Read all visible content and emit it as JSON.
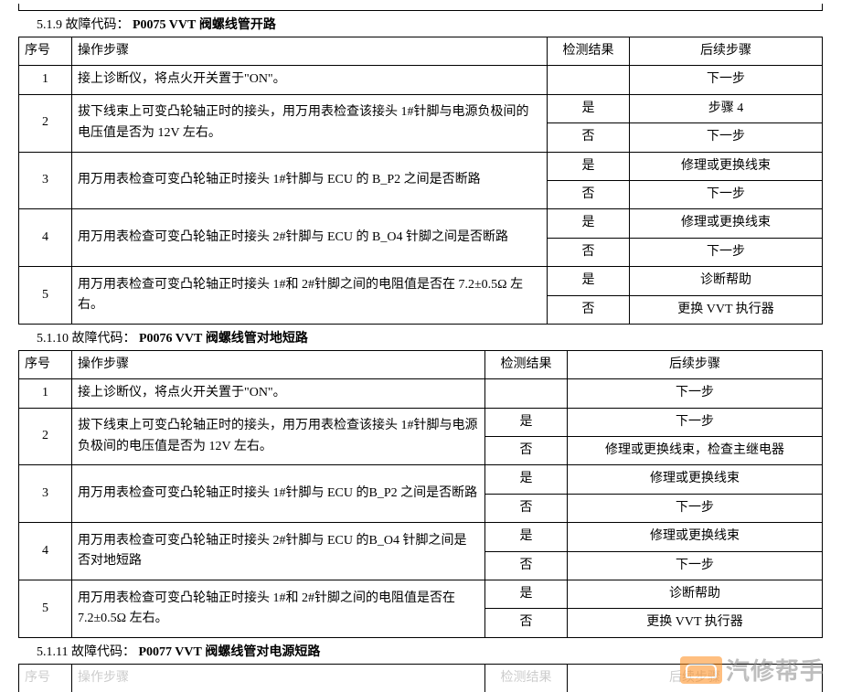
{
  "section_519": {
    "number": "5.1.9",
    "label": "故障代码：",
    "code": "P0075 VVT",
    "desc": "阀螺线管开路"
  },
  "section_5110": {
    "number": "5.1.10",
    "label": "故障代码：",
    "code": "P0076 VVT",
    "desc": "阀螺线管对地短路"
  },
  "section_5111": {
    "number": "5.1.11",
    "label": "故障代码：",
    "code": "P0077 VVT",
    "desc": "阀螺线管对电源短路"
  },
  "headers": {
    "seq": "序号",
    "op": "操作步骤",
    "res": "检测结果",
    "next": "后续步骤"
  },
  "tableA": {
    "r1_op": "接上诊断仪，将点火开关置于\"ON\"。",
    "r1_next": "下一步",
    "r2_op": "拔下线束上可变凸轮轴正时的接头，用万用表检查该接头 1#针脚与电源负极间的电压值是否为 12V 左右。",
    "r2_yes": "是",
    "r2_yes_next": "步骤 4",
    "r2_no": "否",
    "r2_no_next": "下一步",
    "r3_op": "用万用表检查可变凸轮轴正时接头 1#针脚与 ECU 的 B_P2 之间是否断路",
    "r3_yes": "是",
    "r3_yes_next": "修理或更换线束",
    "r3_no": "否",
    "r3_no_next": "下一步",
    "r4_op": "用万用表检查可变凸轮轴正时接头 2#针脚与 ECU 的 B_O4 针脚之间是否断路",
    "r4_yes": "是",
    "r4_yes_next": "修理或更换线束",
    "r4_no": "否",
    "r4_no_next": "下一步",
    "r5_op": "用万用表检查可变凸轮轴正时接头 1#和 2#针脚之间的电阻值是否在 7.2±0.5Ω 左右。",
    "r5_yes": "是",
    "r5_yes_next": "诊断帮助",
    "r5_no": "否",
    "r5_no_next": "更换 VVT 执行器",
    "n1": "1",
    "n2": "2",
    "n3": "3",
    "n4": "4",
    "n5": "5"
  },
  "tableB": {
    "r1_op": "接上诊断仪，将点火开关置于\"ON\"。",
    "r1_next": "下一步",
    "r2_op": "拔下线束上可变凸轮轴正时的接头，用万用表检查该接头 1#针脚与电源负极间的电压值是否为 12V 左右。",
    "r2_yes": "是",
    "r2_yes_next": "下一步",
    "r2_no": "否",
    "r2_no_next": "修理或更换线束，检查主继电器",
    "r3_op": "用万用表检查可变凸轮轴正时接头 1#针脚与 ECU 的B_P2 之间是否断路",
    "r3_yes": "是",
    "r3_yes_next": "修理或更换线束",
    "r3_no": "否",
    "r3_no_next": "下一步",
    "r4_op": "用万用表检查可变凸轮轴正时接头 2#针脚与 ECU 的B_O4 针脚之间是否对地短路",
    "r4_yes": "是",
    "r4_yes_next": "修理或更换线束",
    "r4_no": "否",
    "r4_no_next": "下一步",
    "r5_op": "用万用表检查可变凸轮轴正时接头 1#和 2#针脚之间的电阻值是否在 7.2±0.5Ω 左右。",
    "r5_yes": "是",
    "r5_yes_next": "诊断帮助",
    "r5_no": "否",
    "r5_no_next": "更换 VVT 执行器",
    "n1": "1",
    "n2": "2",
    "n3": "3",
    "n4": "4",
    "n5": "5"
  },
  "watermark": "汽修帮手"
}
